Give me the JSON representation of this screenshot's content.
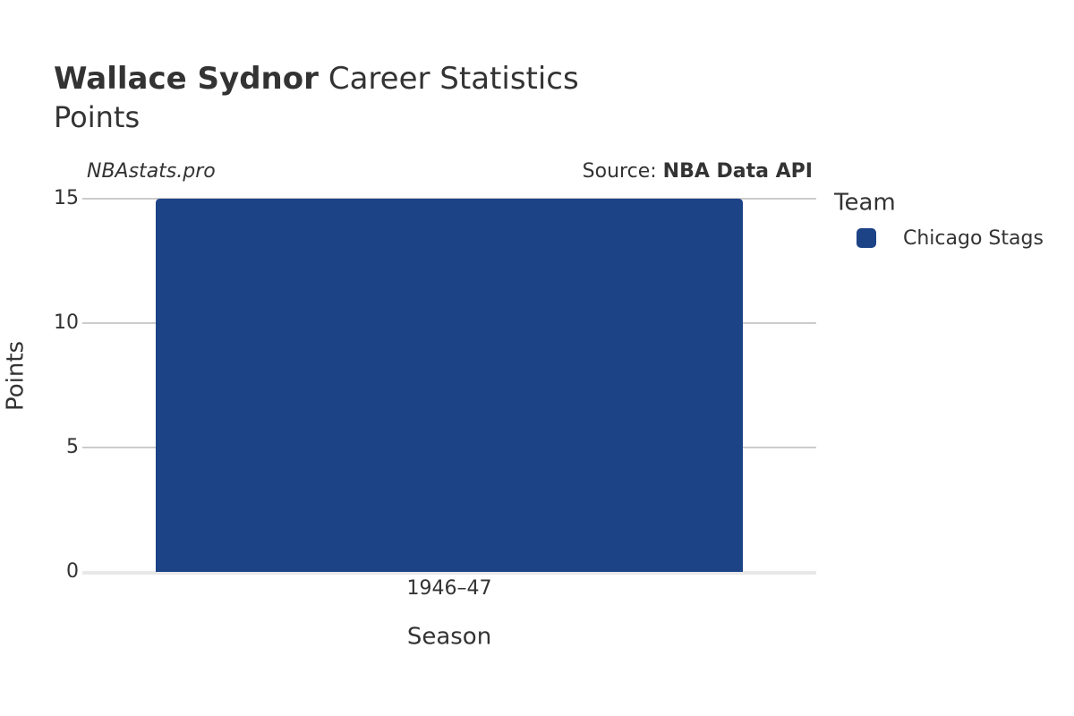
{
  "chart_data": {
    "type": "bar",
    "title_bold": "Wallace Sydnor",
    "title": "Career Statistics",
    "subtitle": "Points",
    "watermark": "NBAstats.pro",
    "source_label": "Source:",
    "source": "NBA Data API",
    "x_label": "Season",
    "y_label": "Points",
    "legend_title": "Team",
    "categories": [
      "1946–47"
    ],
    "series": [
      {
        "name": "Chicago Stags",
        "color": "#1d4387",
        "values": [
          15
        ]
      }
    ],
    "ylim": [
      0,
      15
    ],
    "yticks": [
      0,
      5,
      10,
      15
    ],
    "grid": true
  }
}
